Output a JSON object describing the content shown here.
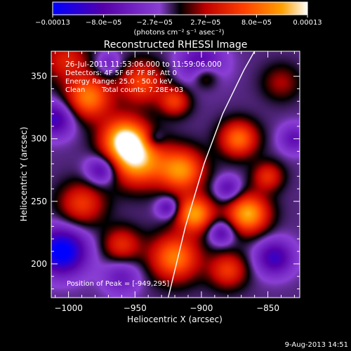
{
  "colorbar": {
    "tick_labels": [
      "−0.00013",
      "−8.0e−05",
      "−2.7e−05",
      "2.7e−05",
      "8.0e−05",
      "0.00013"
    ],
    "units_label": "(photons cm⁻² s⁻¹ asec⁻²)",
    "colors": [
      "#0000ff",
      "#5500aa",
      "#8a3fd4",
      "#000000",
      "#c00000",
      "#ff4000",
      "#ffa000",
      "#ffffff"
    ]
  },
  "chart_data": {
    "type": "heatmap",
    "title": "Reconstructed RHESSI Image",
    "xlabel": "Heliocentric X (arcsec)",
    "ylabel": "Heliocentric Y (arcsec)",
    "xlim": [
      -1013,
      -826
    ],
    "ylim": [
      173,
      370
    ],
    "x_ticks": [
      -1000,
      -950,
      -900,
      -850
    ],
    "y_ticks": [
      200,
      250,
      300,
      350
    ],
    "x_tick_labels": [
      "−1000",
      "−950",
      "−900",
      "−850"
    ],
    "y_tick_labels": [
      "200",
      "250",
      "300",
      "350"
    ],
    "value_range": [
      -0.00013,
      0.00013
    ],
    "limb_curve": [
      [
        -925,
        173
      ],
      [
        -912,
        230
      ],
      [
        -898,
        280
      ],
      [
        -884,
        320
      ],
      [
        -868,
        355
      ],
      [
        -860,
        370
      ]
    ],
    "peak": {
      "x": -949,
      "y": 295
    },
    "blobs": [
      [
        -958,
        300,
        12,
        1.0
      ],
      [
        -948,
        282,
        14,
        0.9
      ],
      [
        -915,
        275,
        12,
        0.85
      ],
      [
        -905,
        240,
        10,
        0.9
      ],
      [
        -865,
        240,
        11,
        0.95
      ],
      [
        -920,
        205,
        13,
        0.8
      ],
      [
        -872,
        300,
        10,
        0.75
      ],
      [
        -985,
        333,
        12,
        0.8
      ],
      [
        -990,
        248,
        12,
        0.55
      ],
      [
        -945,
        345,
        12,
        0.6
      ],
      [
        -880,
        195,
        10,
        0.55
      ],
      [
        -850,
        270,
        8,
        0.5
      ],
      [
        -960,
        215,
        10,
        0.5
      ],
      [
        -920,
        330,
        8,
        0.55
      ],
      [
        -897,
        350,
        7,
        0.45
      ],
      [
        -1002,
        363,
        12,
        0.45
      ],
      [
        -840,
        345,
        10,
        0.3
      ],
      [
        -1005,
        210,
        13,
        -0.95
      ],
      [
        -1010,
        316,
        10,
        -0.6
      ],
      [
        -900,
        360,
        12,
        -0.5
      ],
      [
        -845,
        205,
        10,
        -0.6
      ],
      [
        -880,
        260,
        7,
        -0.45
      ],
      [
        -975,
        275,
        8,
        -0.55
      ],
      [
        -925,
        245,
        6,
        -0.5
      ],
      [
        -885,
        225,
        7,
        -0.5
      ],
      [
        -960,
        190,
        10,
        -0.35
      ],
      [
        -830,
        300,
        8,
        -0.4
      ],
      [
        -970,
        360,
        7,
        -0.3
      ],
      [
        -935,
        300,
        5,
        -0.3
      ]
    ]
  },
  "annotations": {
    "time_range": "26-Jul-2011 11:53:06.000 to 11:59:06.000",
    "detectors": "Detectors: 4F 5F 6F 7F 8F, Att 0",
    "energy_range": "Energy Range: 25.0 - 50.0 keV",
    "algorithm": "Clean",
    "total_counts": "Total counts: 7.28E+03",
    "peak_position": "Position of Peak = [-949,295]"
  },
  "footer": {
    "date": "9-Aug-2013 14:51"
  }
}
